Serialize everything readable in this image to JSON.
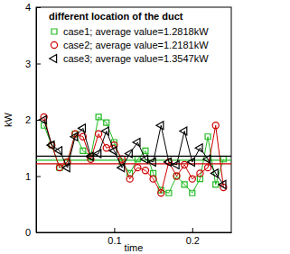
{
  "chart_data": {
    "type": "line",
    "title": "different location of the duct",
    "x_label": "time",
    "y_label": "kW",
    "x": [
      0.01,
      0.02,
      0.03,
      0.04,
      0.05,
      0.06,
      0.07,
      0.08,
      0.09,
      0.1,
      0.11,
      0.12,
      0.13,
      0.14,
      0.15,
      0.16,
      0.17,
      0.18,
      0.19,
      0.2,
      0.21,
      0.22,
      0.23,
      0.24
    ],
    "series": [
      {
        "name": "case1; average value=1.2818kW",
        "color": "#22bb22",
        "marker": "square",
        "average": 1.2818,
        "values": [
          1.9,
          1.55,
          1.15,
          1.25,
          1.75,
          1.45,
          1.35,
          2.05,
          1.95,
          1.6,
          1.25,
          1.05,
          1.3,
          1.45,
          1.05,
          0.75,
          0.7,
          1.0,
          0.85,
          0.7,
          0.95,
          1.7,
          0.85,
          1.3
        ]
      },
      {
        "name": "case2; average value=1.2181kW",
        "color": "#cc0000",
        "marker": "circle",
        "average": 1.2181,
        "values": [
          2.05,
          1.55,
          1.15,
          1.25,
          1.75,
          1.7,
          1.3,
          1.75,
          1.5,
          1.55,
          1.3,
          0.95,
          1.15,
          1.1,
          0.95,
          0.7,
          1.25,
          1.0,
          1.2,
          0.95,
          1.05,
          1.15,
          1.9,
          0.8
        ]
      },
      {
        "name": "case3; average value=1.3547kW",
        "color": "#000000",
        "marker": "triangle-left",
        "average": 1.3547,
        "values": [
          2.0,
          1.55,
          1.45,
          1.15,
          1.7,
          1.85,
          1.35,
          1.4,
          1.8,
          1.45,
          1.15,
          1.4,
          1.6,
          1.3,
          1.25,
          1.9,
          1.25,
          1.2,
          1.8,
          1.25,
          1.5,
          1.3,
          1.05,
          0.85
        ]
      }
    ],
    "xlim": [
      0,
      0.25
    ],
    "xticks": [
      0.1,
      0.2
    ],
    "ylim": [
      0,
      4
    ],
    "yticks": [
      0,
      1,
      2,
      3,
      4
    ],
    "legend": "upper left",
    "grid": false
  }
}
